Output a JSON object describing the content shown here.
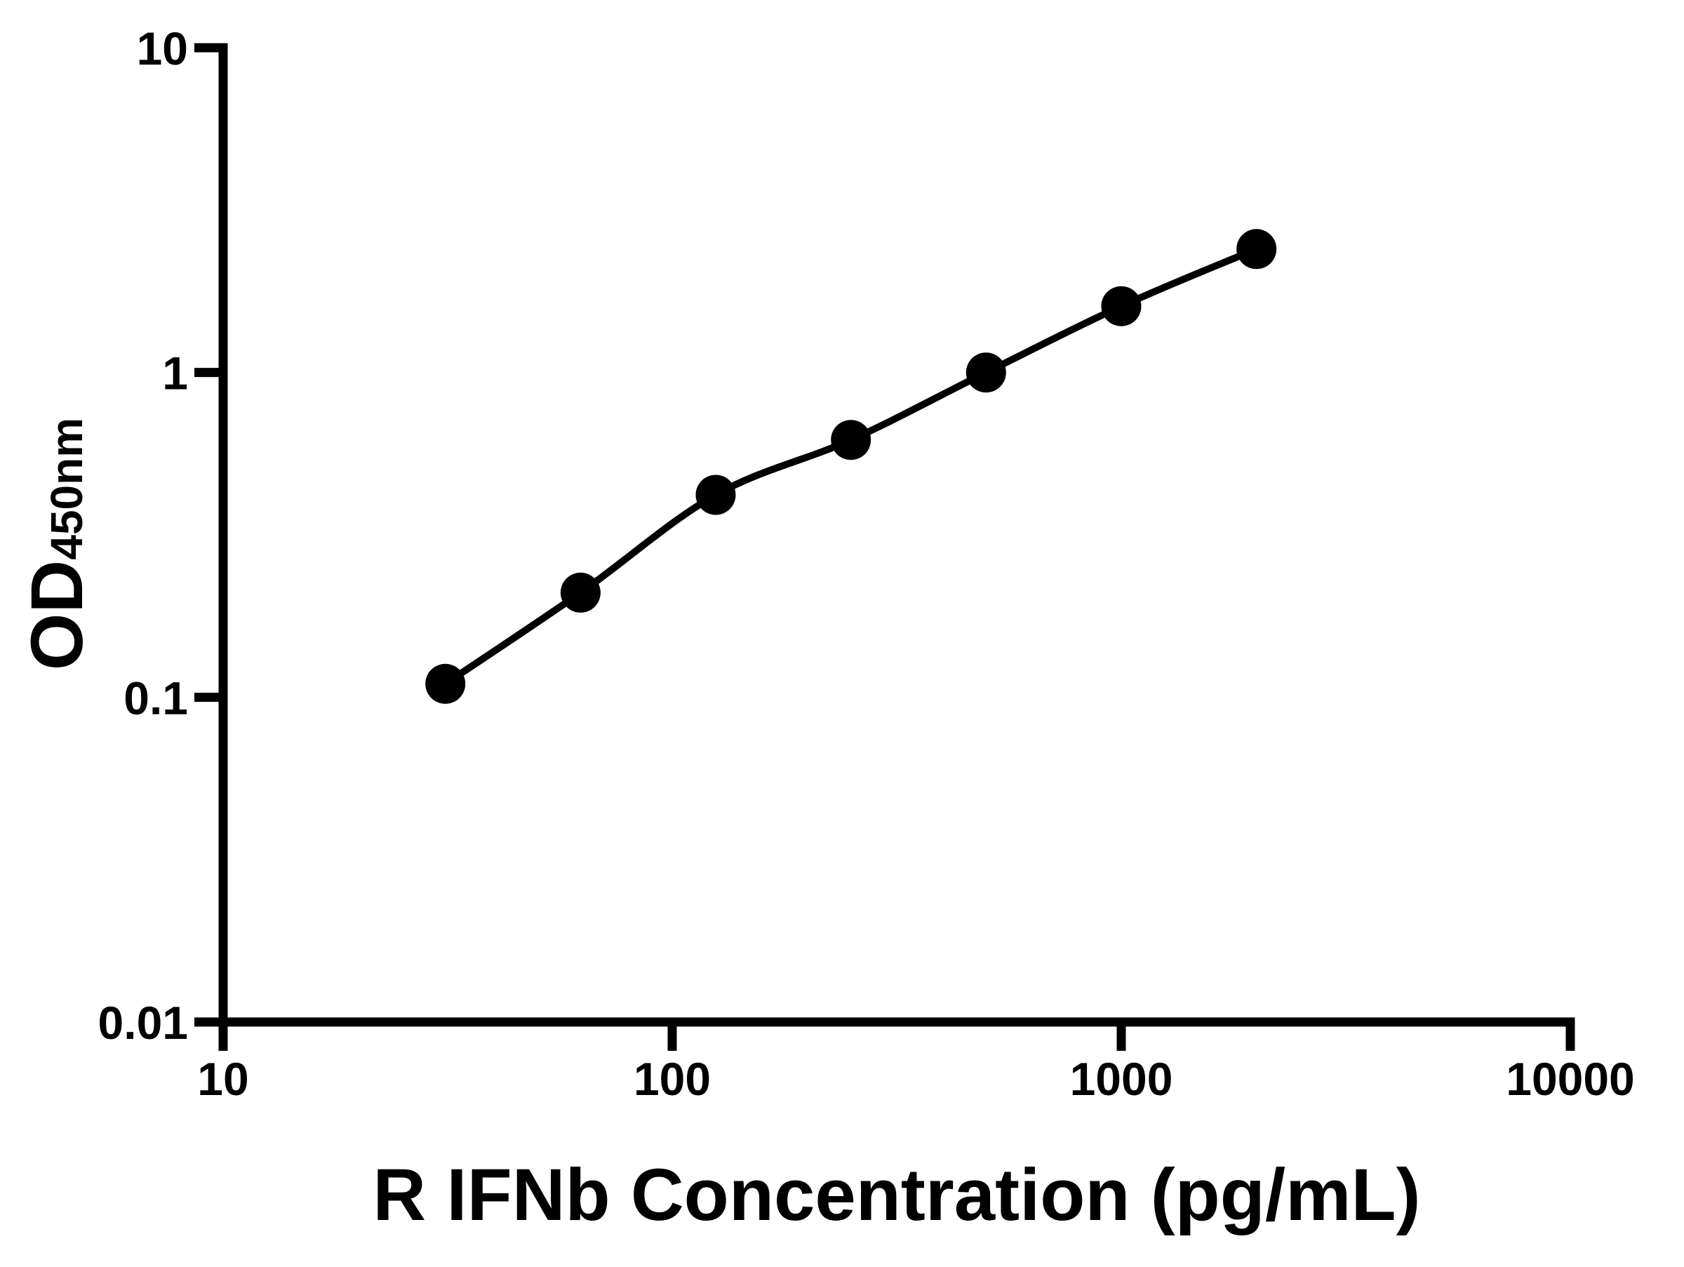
{
  "chart_data": {
    "type": "scatter",
    "title": "",
    "xlabel": "R IFNb Concentration (pg/mL)",
    "ylabel_main": "OD",
    "ylabel_subscript": "450nm",
    "xscale": "log",
    "yscale": "log",
    "xlim": [
      10,
      10000
    ],
    "ylim": [
      0.01,
      10
    ],
    "x_ticks": [
      "10",
      "100",
      "1000",
      "10000"
    ],
    "y_ticks": [
      "0.01",
      "0.1",
      "1",
      "10"
    ],
    "x": [
      31.25,
      62.5,
      125,
      250,
      500,
      1000,
      2000
    ],
    "y": [
      0.11,
      0.21,
      0.42,
      0.62,
      1.0,
      1.6,
      2.4
    ],
    "series_name": "R IFNb standard curve",
    "marker": "circle",
    "marker_color": "#000000",
    "line_color": "#000000",
    "axis_color": "#000000",
    "background": "#ffffff",
    "grid": "off",
    "legend": "none"
  }
}
